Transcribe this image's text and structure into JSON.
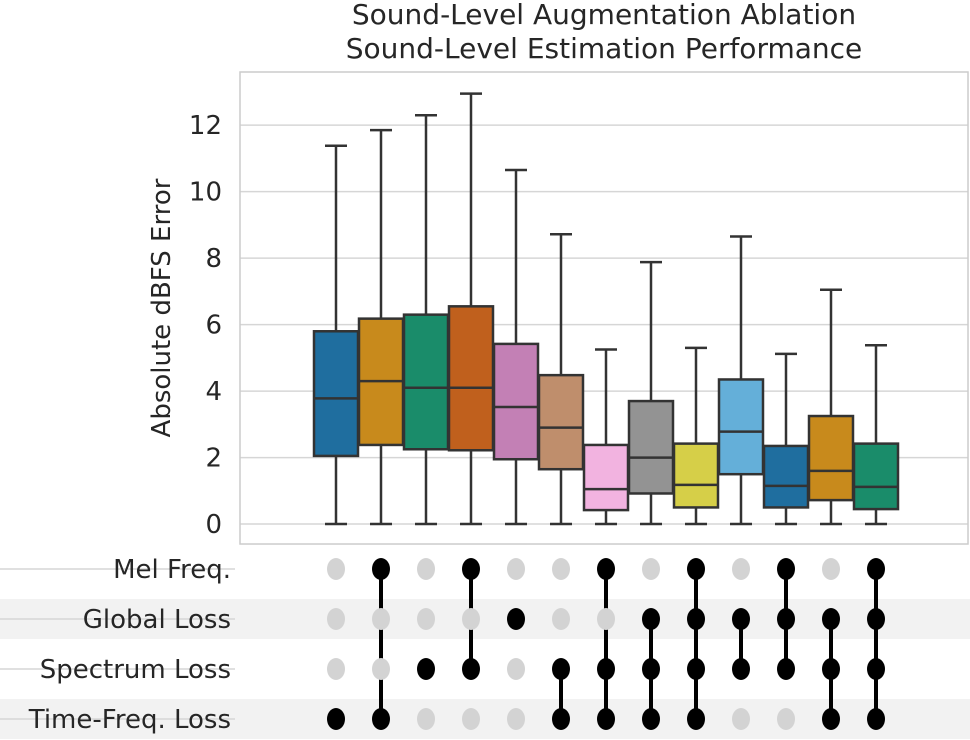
{
  "chart_data": {
    "type": "box",
    "title_lines": [
      "Sound-Level Augmentation Ablation",
      "Sound-Level Estimation Performance"
    ],
    "ylabel": "Absolute dBFS Error",
    "ylim": [
      -0.6,
      13.6
    ],
    "yticks": [
      0,
      2,
      4,
      6,
      8,
      10,
      12
    ],
    "grid": true,
    "boxes": [
      {
        "whisker_low": 0,
        "q1": 2.05,
        "median": 3.78,
        "q3": 5.8,
        "whisker_high": 11.38,
        "color": "#1f6e9f",
        "features": [
          "Time-Freq. Loss"
        ]
      },
      {
        "whisker_low": 0,
        "q1": 2.38,
        "median": 4.3,
        "q3": 6.18,
        "whisker_high": 11.85,
        "color": "#c88a1c",
        "features": [
          "Mel Freq.",
          "Time-Freq. Loss"
        ]
      },
      {
        "whisker_low": 0,
        "q1": 2.25,
        "median": 4.1,
        "q3": 6.3,
        "whisker_high": 12.3,
        "color": "#1a8c6a",
        "features": [
          "Spectrum Loss"
        ]
      },
      {
        "whisker_low": 0,
        "q1": 2.22,
        "median": 4.1,
        "q3": 6.55,
        "whisker_high": 12.95,
        "color": "#c0601d",
        "features": [
          "Mel Freq.",
          "Spectrum Loss"
        ]
      },
      {
        "whisker_low": 0,
        "q1": 1.95,
        "median": 3.52,
        "q3": 5.42,
        "whisker_high": 10.65,
        "color": "#c380b5",
        "features": [
          "Global Loss"
        ]
      },
      {
        "whisker_low": 0,
        "q1": 1.65,
        "median": 2.9,
        "q3": 4.48,
        "whisker_high": 8.72,
        "color": "#bf8e6c",
        "features": [
          "Spectrum Loss",
          "Time-Freq. Loss"
        ]
      },
      {
        "whisker_low": 0,
        "q1": 0.42,
        "median": 1.05,
        "q3": 2.38,
        "whisker_high": 5.25,
        "color": "#f2b3e0",
        "features": [
          "Mel Freq.",
          "Spectrum Loss",
          "Time-Freq. Loss"
        ]
      },
      {
        "whisker_low": 0,
        "q1": 0.92,
        "median": 2.0,
        "q3": 3.7,
        "whisker_high": 7.88,
        "color": "#939393",
        "features": [
          "Global Loss",
          "Spectrum Loss",
          "Time-Freq. Loss"
        ]
      },
      {
        "whisker_low": 0,
        "q1": 0.5,
        "median": 1.18,
        "q3": 2.42,
        "whisker_high": 5.3,
        "color": "#d6cf48",
        "features": [
          "Mel Freq.",
          "Global Loss",
          "Spectrum Loss",
          "Time-Freq. Loss"
        ]
      },
      {
        "whisker_low": 0,
        "q1": 1.5,
        "median": 2.78,
        "q3": 4.35,
        "whisker_high": 8.65,
        "color": "#64afd9",
        "features": [
          "Global Loss",
          "Spectrum Loss"
        ]
      },
      {
        "whisker_low": 0,
        "q1": 0.5,
        "median": 1.15,
        "q3": 2.35,
        "whisker_high": 5.12,
        "color": "#1f6e9f",
        "features": [
          "Mel Freq.",
          "Global Loss",
          "Spectrum Loss"
        ]
      },
      {
        "whisker_low": 0,
        "q1": 0.72,
        "median": 1.6,
        "q3": 3.25,
        "whisker_high": 7.05,
        "color": "#c88a1c",
        "features": [
          "Global Loss",
          "Spectrum Loss",
          "Time-Freq. Loss"
        ]
      },
      {
        "whisker_low": 0,
        "q1": 0.45,
        "median": 1.12,
        "q3": 2.42,
        "whisker_high": 5.38,
        "color": "#1a8c6a",
        "features": [
          "Mel Freq.",
          "Global Loss",
          "Spectrum Loss",
          "Time-Freq. Loss"
        ]
      }
    ],
    "matrix_rows": [
      "Mel Freq.",
      "Global Loss",
      "Spectrum Loss",
      "Time-Freq. Loss"
    ],
    "colors": {
      "active_dot": "#000000",
      "inactive_dot": "#d3d3d3",
      "grid": "#d6d6d6",
      "axis": "#cccccc",
      "stripe": "#f2f2f2",
      "line": "#333333"
    }
  }
}
